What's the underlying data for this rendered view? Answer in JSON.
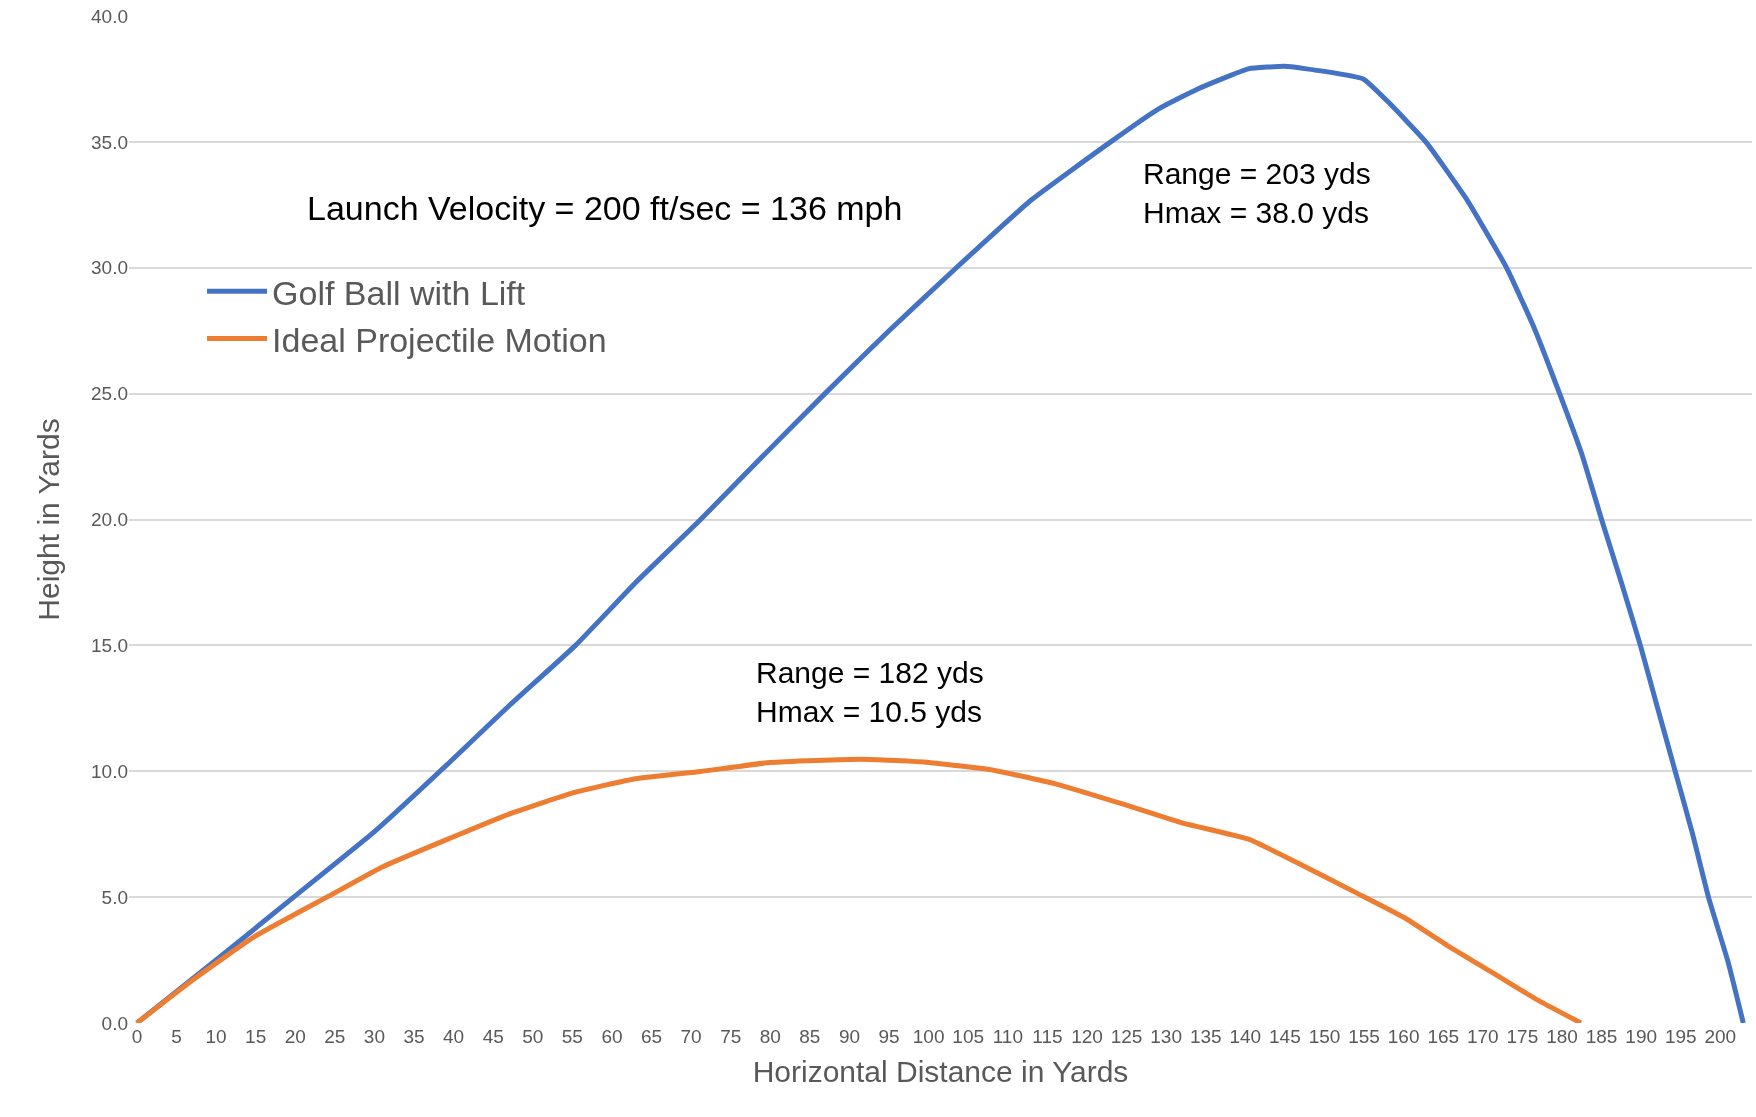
{
  "chart_data": {
    "type": "line",
    "xlabel": "Horizontal Distance in Yards",
    "ylabel": "Height in Yards",
    "annotations": [
      "Launch Velocity = 200 ft/sec = 136 mph",
      "Range = 203 yds\nHmax = 38.0 yds",
      "Range = 182 yds\nHmax = 10.5 yds"
    ],
    "series": [
      {
        "name": "Golf Ball with Lift",
        "color": "#4472c4",
        "x": [
          0,
          10,
          19.8,
          30,
          39.3,
          47,
          55.4,
          63,
          71.2,
          79,
          86.9,
          95,
          103.5,
          113,
          123,
          129,
          134,
          140.4,
          145,
          150,
          154.9,
          158,
          162.8,
          168,
          173,
          176.5,
          179.7,
          182.5,
          185,
          187.5,
          189.9,
          192,
          194.3,
          196.5,
          198.5,
          201,
          202.9
        ],
        "values": [
          0,
          2.5,
          5.0,
          7.6,
          10.3,
          12.6,
          15.0,
          17.5,
          20.0,
          22.5,
          25.0,
          27.5,
          30.0,
          32.7,
          35.0,
          36.3,
          37.1,
          37.9,
          38.0,
          37.8,
          37.5,
          36.6,
          35.0,
          32.7,
          30.0,
          27.6,
          25.0,
          22.6,
          20.0,
          17.5,
          15.0,
          12.6,
          10.0,
          7.5,
          5.0,
          2.4,
          0
        ]
      },
      {
        "name": "Ideal Projectile Motion",
        "color": "#ed7d31",
        "x": [
          0,
          7,
          14.8,
          24,
          31,
          39.7,
          47,
          55.4,
          63,
          71.2,
          80,
          91.5,
          100,
          108.2,
          116,
          124.8,
          132,
          140.4,
          147,
          154.1,
          160,
          166.1,
          172,
          177,
          182.4
        ],
        "values": [
          0,
          1.7,
          3.42,
          5.0,
          6.2,
          7.36,
          8.3,
          9.17,
          9.7,
          9.99,
          10.35,
          10.48,
          10.35,
          10.04,
          9.5,
          8.67,
          7.95,
          7.3,
          6.3,
          5.16,
          4.2,
          2.96,
          1.85,
          0.9,
          0
        ]
      }
    ],
    "xlim": [
      -1,
      204
    ],
    "xticks": [
      0,
      5,
      10,
      15,
      20,
      25,
      30,
      35,
      40,
      45,
      50,
      55,
      60,
      65,
      70,
      75,
      80,
      85,
      90,
      95,
      100,
      105,
      110,
      115,
      120,
      125,
      130,
      135,
      140,
      145,
      150,
      155,
      160,
      165,
      170,
      175,
      180,
      185,
      190,
      195,
      200
    ],
    "ylim": [
      0,
      40
    ],
    "yticks": [
      {
        "value": 0,
        "label": "0.0"
      },
      {
        "value": 5,
        "label": "5.0"
      },
      {
        "value": 10,
        "label": "10.0"
      },
      {
        "value": 15,
        "label": "15.0"
      },
      {
        "value": 20,
        "label": "20.0"
      },
      {
        "value": 25,
        "label": "25.0"
      },
      {
        "value": 30,
        "label": "30.0"
      },
      {
        "value": 35,
        "label": "35.0"
      },
      {
        "value": 40,
        "label": "40.0"
      }
    ],
    "grid": "y",
    "legend": "top left",
    "marker": "none",
    "line_style": "solid"
  }
}
